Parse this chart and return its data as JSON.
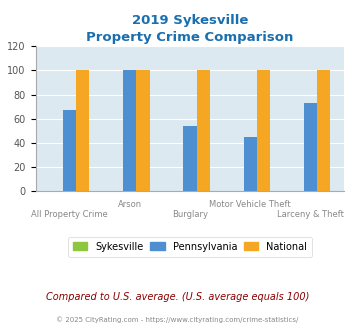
{
  "title_line1": "2019 Sykesville",
  "title_line2": "Property Crime Comparison",
  "title_color": "#1a6faf",
  "categories": [
    "All Property Crime",
    "Arson",
    "Burglary",
    "Motor Vehicle Theft",
    "Larceny & Theft"
  ],
  "sykesville_values": [
    0,
    0,
    0,
    0,
    0
  ],
  "pennsylvania_values": [
    67,
    100,
    54,
    45,
    73
  ],
  "national_values": [
    100,
    100,
    100,
    100,
    100
  ],
  "sykesville_color": "#8dc63f",
  "pennsylvania_color": "#4d8fd1",
  "national_color": "#f5a623",
  "ylim": [
    0,
    120
  ],
  "yticks": [
    0,
    20,
    40,
    60,
    80,
    100,
    120
  ],
  "plot_bg_color": "#dce9f0",
  "legend_labels": [
    "Sykesville",
    "Pennsylvania",
    "National"
  ],
  "footnote1": "Compared to U.S. average. (U.S. average equals 100)",
  "footnote2": "© 2025 CityRating.com - https://www.cityrating.com/crime-statistics/",
  "footnote1_color": "#8b0000",
  "footnote2_color": "#888888",
  "grid_color": "#ffffff",
  "bar_width": 0.22
}
